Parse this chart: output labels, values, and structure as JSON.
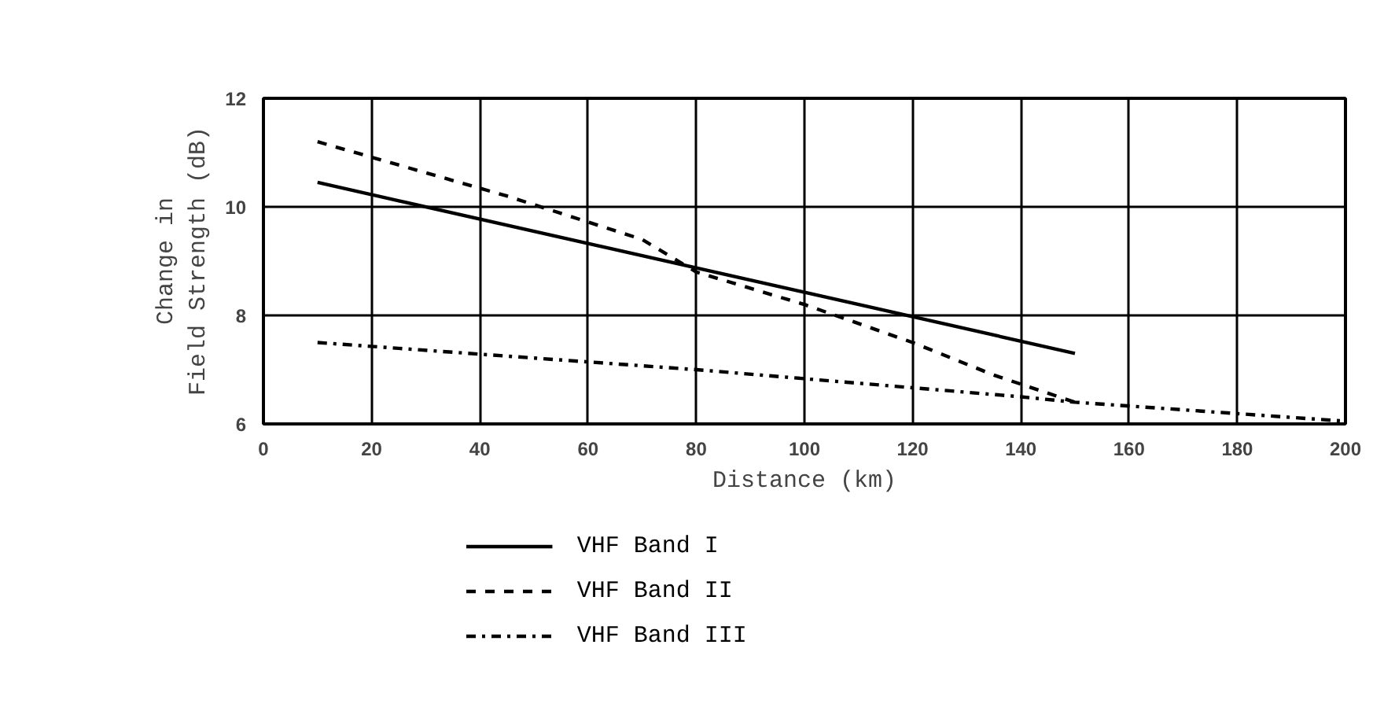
{
  "chart_data": {
    "type": "line",
    "xlabel": "Distance (km)",
    "ylabel": "Change in\nField Strength (dB)",
    "xlim": [
      0,
      200
    ],
    "ylim": [
      6,
      12
    ],
    "xticks": [
      0,
      20,
      40,
      60,
      80,
      100,
      120,
      140,
      160,
      180,
      200
    ],
    "yticks": [
      6,
      8,
      10,
      12
    ],
    "grid": true,
    "legend": "bottom left",
    "marker": "none",
    "series": [
      {
        "name": "VHF  Band I",
        "color": "#000000",
        "line_style": "solid",
        "x": [
          10,
          150
        ],
        "values": [
          10.45,
          7.3
        ]
      },
      {
        "name": "VHF Band II",
        "color": "#000000",
        "line_style": "dashed",
        "x": [
          10,
          45,
          70,
          80,
          100,
          120,
          135,
          150
        ],
        "values": [
          11.2,
          10.2,
          9.4,
          8.8,
          8.2,
          7.5,
          6.9,
          6.4
        ]
      },
      {
        "name": "VHF Band III",
        "color": "#000000",
        "line_style": "dashdot",
        "x": [
          10,
          80,
          140,
          150,
          200
        ],
        "values": [
          7.5,
          7.0,
          6.5,
          6.4,
          6.05
        ]
      }
    ]
  }
}
